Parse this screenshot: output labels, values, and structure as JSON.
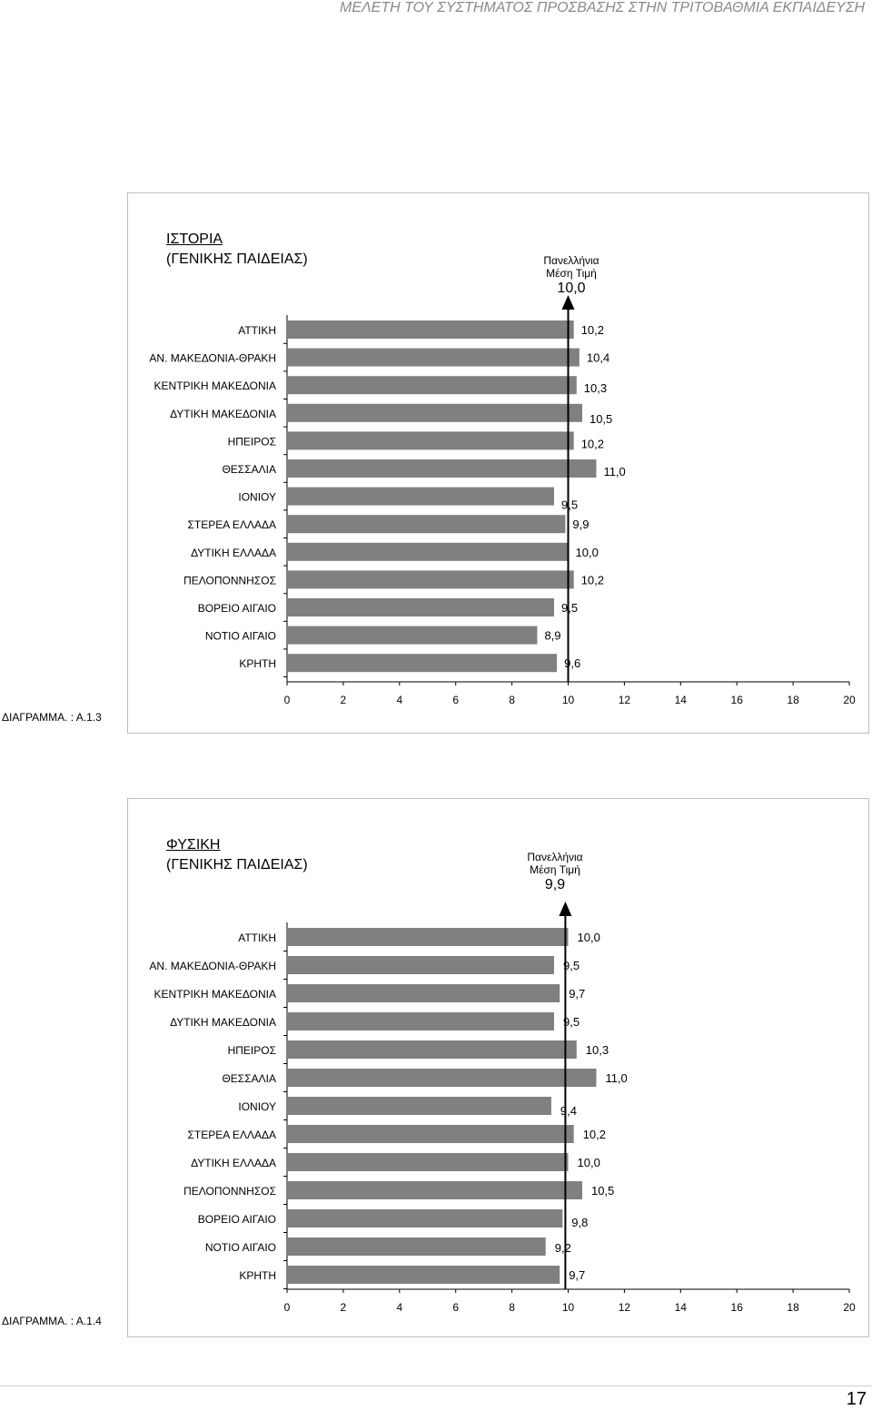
{
  "header": "ΜΕΛΕΤΗ ΤΟΥ ΣΥΣΤΗΜΑΤΟΣ ΠΡΟΣΒΑΣΗΣ ΣΤΗΝ ΤΡΙΤΟΒΑΘΜΙΑ ΕΚΠΑΙΔΕΥΣΗ",
  "page_number": "17",
  "charts": [
    {
      "title": "ΙΣΤΟΡΙΑ",
      "subtitle": "(ΓΕΝΙΚΗΣ ΠΑΙΔΕΙΑΣ)",
      "avg_label1": "Πανελλήνια",
      "avg_label2": "Μέση Τιμή",
      "avg_value_text": "10,0",
      "caption": "ΔΙΑΓΡΑΜΜΑ. : Α.1.3"
    },
    {
      "title": "ΦΥΣΙΚΗ",
      "subtitle": "(ΓΕΝΙΚΗΣ ΠΑΙΔΕΙΑΣ)",
      "avg_label1": "Πανελλήνια",
      "avg_label2": "Μέση Τιμή",
      "avg_value_text": "9,9",
      "caption": "ΔΙΑΓΡΑΜΜΑ. : Α.1.4"
    }
  ],
  "chart_data": [
    {
      "type": "bar",
      "orientation": "horizontal",
      "title": "ΙΣΤΟΡΙΑ (ΓΕΝΙΚΗΣ ΠΑΙΔΕΙΑΣ)",
      "categories": [
        "ΑΤΤΙΚΗ",
        "ΑΝ. ΜΑΚΕΔΟΝΙΑ-ΘΡΑΚΗ",
        "ΚΕΝΤΡΙΚΗ ΜΑΚΕΔΟΝΙΑ",
        "ΔΥΤΙΚΗ ΜΑΚΕΔΟΝΙΑ",
        "ΗΠΕΙΡΟΣ",
        "ΘΕΣΣΑΛΙΑ",
        "ΙΟΝΙΟΥ",
        "ΣΤΕΡΕΑ ΕΛΛΑΔΑ",
        "ΔΥΤΙΚΗ ΕΛΛΑΔΑ",
        "ΠΕΛΟΠΟΝΝΗΣΟΣ",
        "ΒΟΡΕΙΟ ΑΙΓΑΙΟ",
        "ΝΟΤΙΟ ΑΙΓΑΙΟ",
        "ΚΡΗΤΗ"
      ],
      "values": [
        10.2,
        10.4,
        10.3,
        10.5,
        10.2,
        11.0,
        9.5,
        9.9,
        10.0,
        10.2,
        9.5,
        8.9,
        9.6
      ],
      "value_labels": [
        "10,2",
        "10,4",
        "10,3",
        "10,5",
        "10,2",
        "11,0",
        "9,5",
        "9,9",
        "10,0",
        "10,2",
        "9,5",
        "8,9",
        "9,6"
      ],
      "reference_line": 10.0,
      "xlim": [
        0,
        20
      ],
      "xticks": [
        "0",
        "2",
        "4",
        "6",
        "8",
        "10",
        "12",
        "14",
        "16",
        "18",
        "20"
      ],
      "color": "#808080"
    },
    {
      "type": "bar",
      "orientation": "horizontal",
      "title": "ΦΥΣΙΚΗ (ΓΕΝΙΚΗΣ ΠΑΙΔΕΙΑΣ)",
      "categories": [
        "ΑΤΤΙΚΗ",
        "ΑΝ. ΜΑΚΕΔΟΝΙΑ-ΘΡΑΚΗ",
        "ΚΕΝΤΡΙΚΗ ΜΑΚΕΔΟΝΙΑ",
        "ΔΥΤΙΚΗ ΜΑΚΕΔΟΝΙΑ",
        "ΗΠΕΙΡΟΣ",
        "ΘΕΣΣΑΛΙΑ",
        "ΙΟΝΙΟΥ",
        "ΣΤΕΡΕΑ ΕΛΛΑΔΑ",
        "ΔΥΤΙΚΗ ΕΛΛΑΔΑ",
        "ΠΕΛΟΠΟΝΝΗΣΟΣ",
        "ΒΟΡΕΙΟ ΑΙΓΑΙΟ",
        "ΝΟΤΙΟ ΑΙΓΑΙΟ",
        "ΚΡΗΤΗ"
      ],
      "values": [
        10.0,
        9.5,
        9.7,
        9.5,
        10.3,
        11.0,
        9.4,
        10.2,
        10.0,
        10.5,
        9.8,
        9.2,
        9.7
      ],
      "value_labels": [
        "10,0",
        "9,5",
        "9,7",
        "9,5",
        "10,3",
        "11,0",
        "9,4",
        "10,2",
        "10,0",
        "10,5",
        "9,8",
        "9,2",
        "9,7"
      ],
      "reference_line": 9.9,
      "xlim": [
        0,
        20
      ],
      "xticks": [
        "0",
        "2",
        "4",
        "6",
        "8",
        "10",
        "12",
        "14",
        "16",
        "18",
        "20"
      ],
      "color": "#808080"
    }
  ]
}
